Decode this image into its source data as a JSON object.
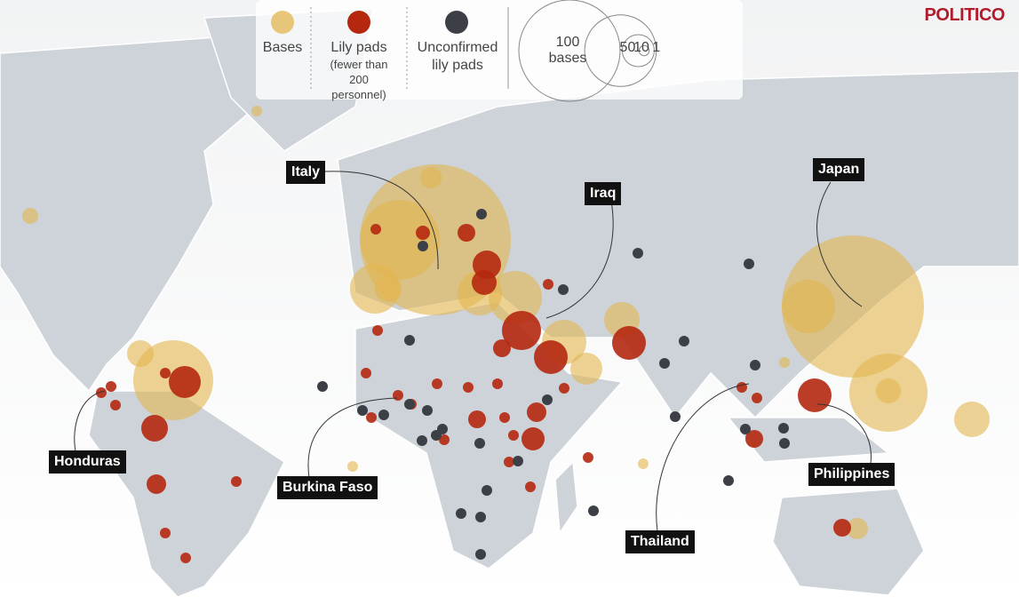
{
  "brand": "POLITICO",
  "legend": {
    "items": [
      {
        "label": "Bases",
        "color": "#e3b54f"
      },
      {
        "label": "Lily pads",
        "note": "(fewer than 200 personnel)",
        "color": "#b5280f"
      },
      {
        "label": "Unconfirmed lily pads",
        "color": "#3c4046"
      }
    ],
    "size_values": [
      100,
      50,
      10,
      1
    ],
    "size_unit": "bases"
  },
  "callouts": [
    "Italy",
    "Japan",
    "Iraq",
    "Honduras",
    "Burkina Faso",
    "Thailand",
    "Philippines"
  ]
}
